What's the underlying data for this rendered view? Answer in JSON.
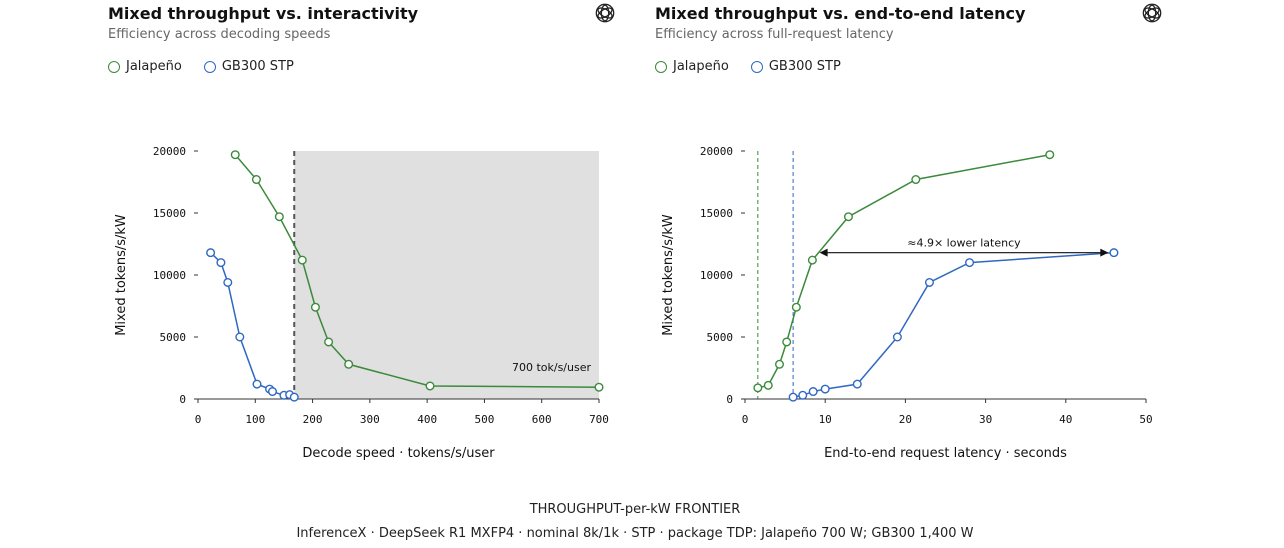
{
  "colors": {
    "jalapeno": "#3b8a3b",
    "gb300": "#2f68c2",
    "shade": "#e0e0e0",
    "axis": "#333333"
  },
  "logo_icon": "openai-logo-icon",
  "footer": {
    "title": "THROUGHPUT-per-kW FRONTIER",
    "subtitle": "InferenceX · DeepSeek R1 MXFP4 · nominal 8k/1k · STP · package TDP: Jalapeño 700 W; GB300 1,400 W"
  },
  "chart_data": [
    {
      "type": "line",
      "title": "Mixed throughput vs. interactivity",
      "subtitle": "Efficiency across decoding speeds",
      "xlabel": "Decode speed · tokens/s/user",
      "ylabel": "Mixed tokens/s/kW",
      "xlim": [
        0,
        700
      ],
      "ylim": [
        0,
        20000
      ],
      "xticks": [
        0,
        100,
        200,
        300,
        400,
        500,
        600,
        700
      ],
      "yticks": [
        0,
        5000,
        10000,
        15000,
        20000
      ],
      "legend_position": "top-left",
      "series": [
        {
          "name": "Jalapeño",
          "color_key": "jalapeno",
          "points": [
            [
              65,
              19700
            ],
            [
              102,
              17700
            ],
            [
              142,
              14700
            ],
            [
              182,
              11200
            ],
            [
              205,
              7400
            ],
            [
              228,
              4600
            ],
            [
              263,
              2800
            ],
            [
              405,
              1050
            ],
            [
              700,
              950
            ]
          ]
        },
        {
          "name": "GB300 STP",
          "color_key": "gb300",
          "points": [
            [
              22,
              11800
            ],
            [
              40,
              11000
            ],
            [
              52,
              9400
            ],
            [
              73,
              5000
            ],
            [
              103,
              1200
            ],
            [
              125,
              800
            ],
            [
              130,
              600
            ],
            [
              150,
              300
            ],
            [
              160,
              350
            ],
            [
              168,
              150
            ]
          ]
        }
      ],
      "vline": {
        "x": 168,
        "style": "dashed"
      },
      "shaded_region": {
        "x_start": 168,
        "x_end": 700
      },
      "annotation": {
        "text": "700 tok/s/user",
        "x": 700,
        "y": 2600
      }
    },
    {
      "type": "line",
      "title": "Mixed throughput vs. end-to-end latency",
      "subtitle": "Efficiency across full-request latency",
      "xlabel": "End-to-end request latency · seconds",
      "ylabel": "Mixed tokens/s/kW",
      "xlim": [
        0,
        50
      ],
      "ylim": [
        0,
        20000
      ],
      "xticks": [
        0,
        10,
        20,
        30,
        40,
        50
      ],
      "yticks": [
        0,
        5000,
        10000,
        15000,
        20000
      ],
      "legend_position": "top-left",
      "series": [
        {
          "name": "Jalapeño",
          "color_key": "jalapeno",
          "points": [
            [
              1.6,
              900
            ],
            [
              2.9,
              1100
            ],
            [
              4.3,
              2800
            ],
            [
              5.2,
              4600
            ],
            [
              6.4,
              7400
            ],
            [
              8.4,
              11200
            ],
            [
              12.9,
              14700
            ],
            [
              21.3,
              17700
            ],
            [
              38.0,
              19700
            ]
          ]
        },
        {
          "name": "GB300 STP",
          "color_key": "gb300",
          "points": [
            [
              6.0,
              150
            ],
            [
              7.2,
              300
            ],
            [
              8.5,
              600
            ],
            [
              10.0,
              800
            ],
            [
              14.0,
              1200
            ],
            [
              19.0,
              5000
            ],
            [
              23.0,
              9400
            ],
            [
              28.0,
              11000
            ],
            [
              46.0,
              11800
            ]
          ]
        }
      ],
      "vlines": [
        {
          "x": 1.6,
          "color_key": "jalapeno"
        },
        {
          "x": 6.0,
          "color_key": "gb300"
        }
      ],
      "arrow": {
        "x_from": 9.3,
        "x_to": 45.3,
        "y": 11800,
        "label": "≈4.9× lower latency"
      }
    }
  ]
}
